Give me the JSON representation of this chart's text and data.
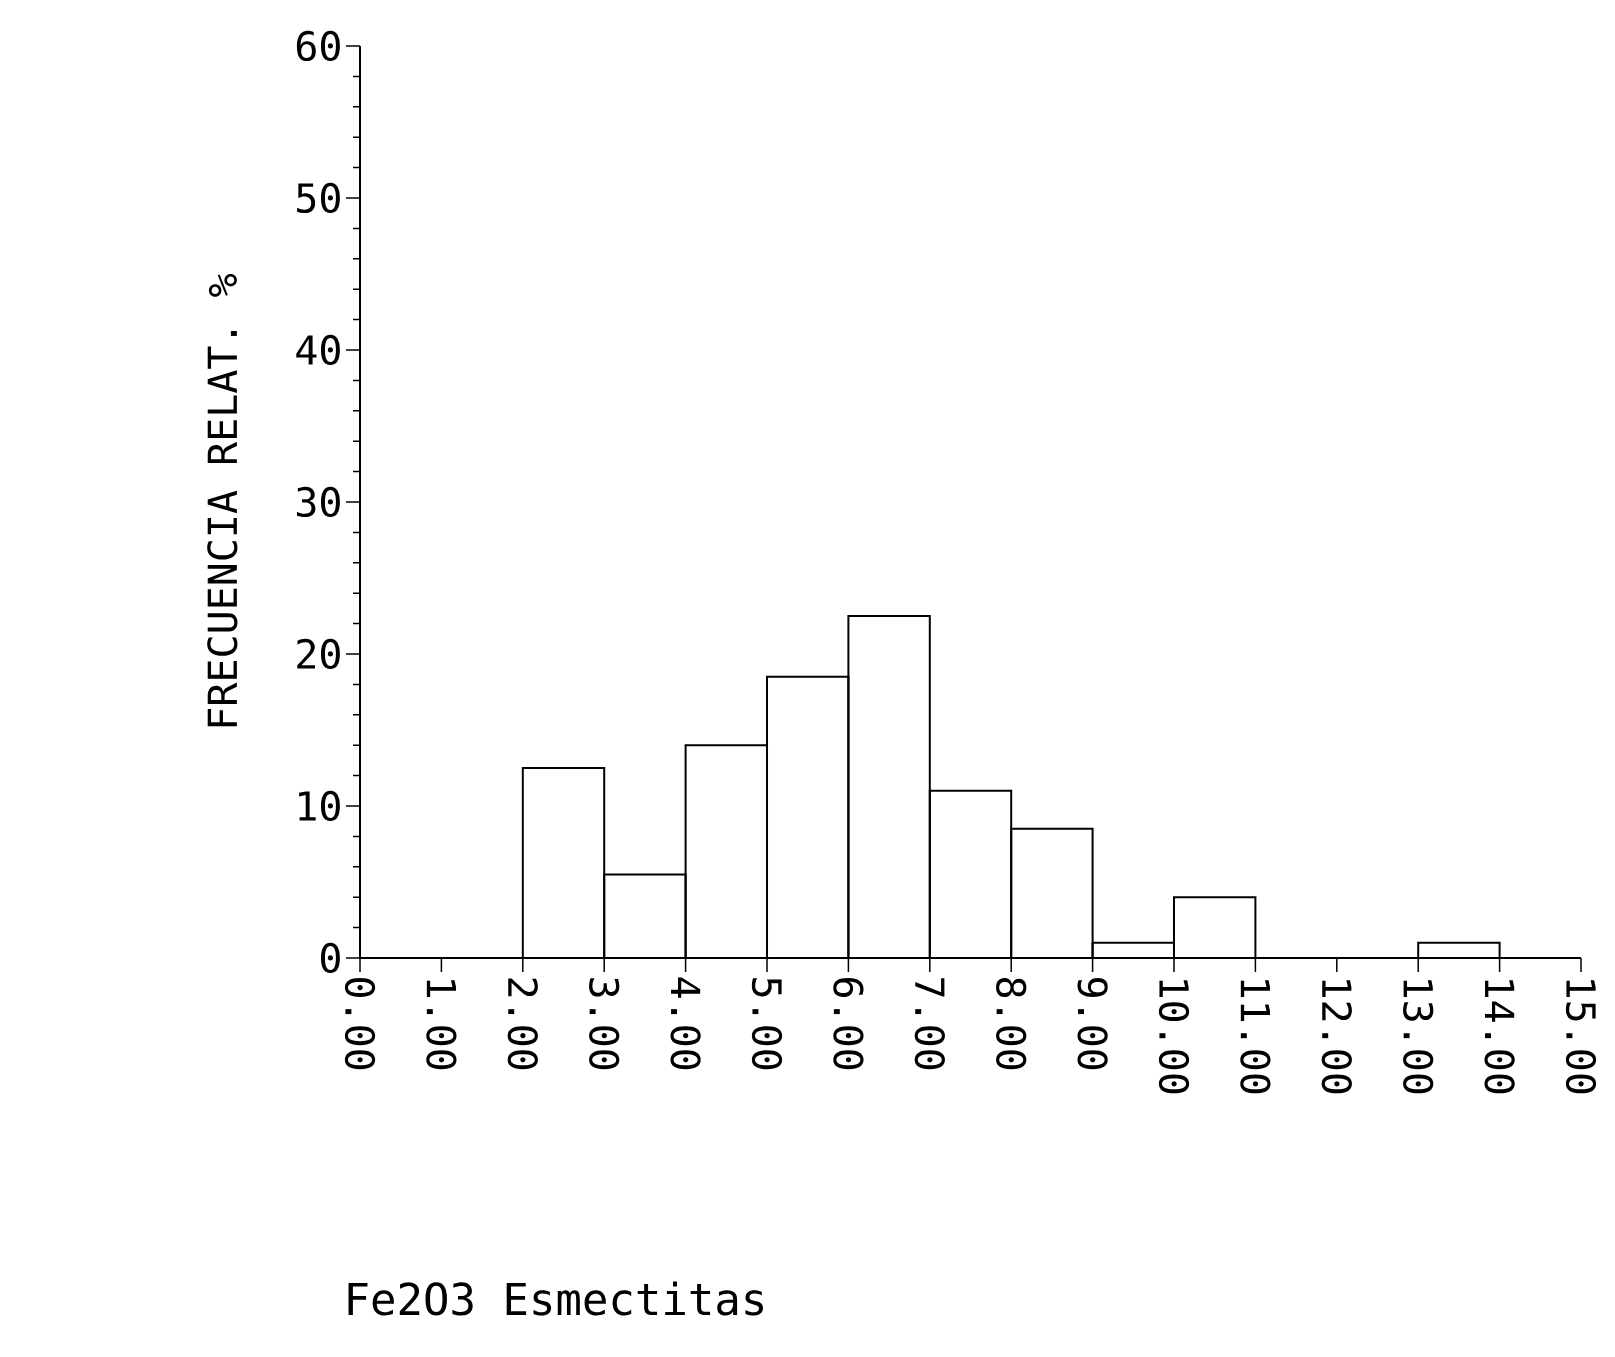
{
  "chart_data": {
    "type": "histogram",
    "xlabel": "Fe2O3 Esmectitas",
    "ylabel": "FRECUENCIA RELAT. %",
    "bins": [
      0,
      1,
      2,
      3,
      4,
      5,
      6,
      7,
      8,
      9,
      10,
      11,
      12,
      13,
      14,
      15
    ],
    "values": [
      0,
      0,
      12.5,
      5.5,
      14,
      18.5,
      22.5,
      11,
      8.5,
      1,
      4,
      0,
      0,
      1,
      0
    ],
    "xlim": [
      0,
      15
    ],
    "ylim": [
      0,
      60
    ],
    "xticks": [
      {
        "value": 0,
        "label": "0.00"
      },
      {
        "value": 1,
        "label": "1.00"
      },
      {
        "value": 2,
        "label": "2.00"
      },
      {
        "value": 3,
        "label": "3.00"
      },
      {
        "value": 4,
        "label": "4.00"
      },
      {
        "value": 5,
        "label": "5.00"
      },
      {
        "value": 6,
        "label": "6.00"
      },
      {
        "value": 7,
        "label": "7.00"
      },
      {
        "value": 8,
        "label": "8.00"
      },
      {
        "value": 9,
        "label": "9.00"
      },
      {
        "value": 10,
        "label": "10.00"
      },
      {
        "value": 11,
        "label": "11.00"
      },
      {
        "value": 12,
        "label": "12.00"
      },
      {
        "value": 13,
        "label": "13.00"
      },
      {
        "value": 14,
        "label": "14.00"
      },
      {
        "value": 15,
        "label": "15.00"
      }
    ],
    "yticks": [
      0,
      10,
      20,
      30,
      40,
      50,
      60
    ],
    "color": "#000000",
    "grid": false
  }
}
